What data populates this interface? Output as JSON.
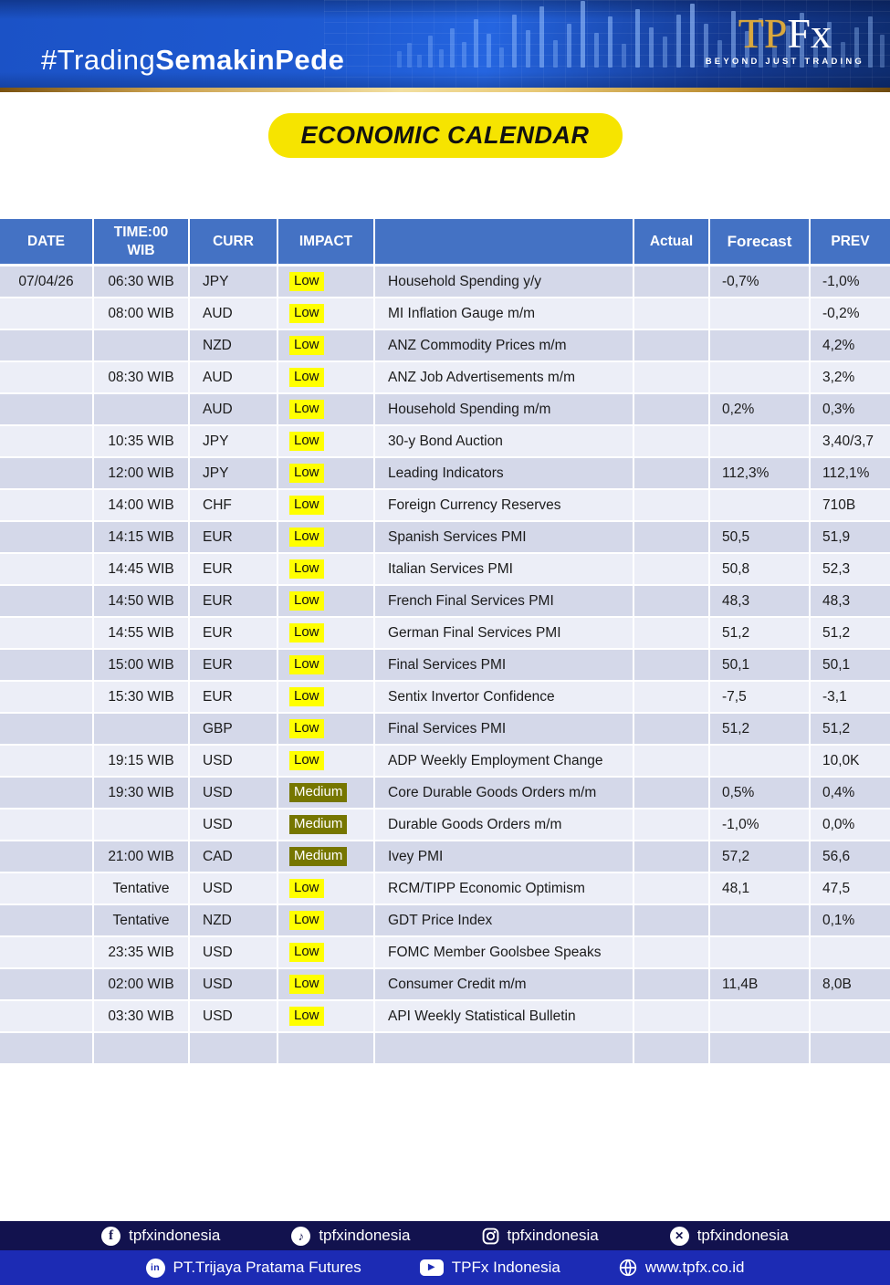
{
  "banner": {
    "hashtag_normal": "#Trading",
    "hashtag_bold": "SemakinPede",
    "logo_tp": "TP",
    "logo_fx": "Fx",
    "logo_tagline": "BEYOND JUST TRADING"
  },
  "title": "ECONOMIC CALENDAR",
  "colors": {
    "table_header_blue": "#4472c4",
    "row_dark": "#d4d8e9",
    "row_light": "#eceef7",
    "impact_low_bg": "#ffff00",
    "impact_medium_bg": "#767600",
    "title_badge_yellow": "#f6e400",
    "banner_blue": "#1e5ad2",
    "gold_accent": "#d9a83f",
    "footer_navy": "#12124e",
    "footer_blue": "#1c2bb4"
  },
  "table": {
    "headers": [
      "DATE",
      "TIME:00 WIB",
      "CURR",
      "IMPACT",
      "",
      "Actual",
      "Forecast",
      "PREV"
    ],
    "rows": [
      {
        "date": "07/04/26",
        "time": "06:30 WIB",
        "curr": "JPY",
        "impact": "Low",
        "event": "Household Spending y/y",
        "actual": "",
        "forecast": "-0,7%",
        "prev": "-1,0%"
      },
      {
        "date": "",
        "time": "08:00 WIB",
        "curr": "AUD",
        "impact": "Low",
        "event": "MI Inflation Gauge m/m",
        "actual": "",
        "forecast": "",
        "prev": "-0,2%"
      },
      {
        "date": "",
        "time": "",
        "curr": "NZD",
        "impact": "Low",
        "event": "ANZ Commodity Prices m/m",
        "actual": "",
        "forecast": "",
        "prev": "4,2%"
      },
      {
        "date": "",
        "time": "08:30 WIB",
        "curr": "AUD",
        "impact": "Low",
        "event": "ANZ Job Advertisements m/m",
        "actual": "",
        "forecast": "",
        "prev": "3,2%"
      },
      {
        "date": "",
        "time": "",
        "curr": "AUD",
        "impact": "Low",
        "event": "Household Spending m/m",
        "actual": "",
        "forecast": "0,2%",
        "prev": "0,3%"
      },
      {
        "date": "",
        "time": "10:35 WIB",
        "curr": "JPY",
        "impact": "Low",
        "event": "30-y Bond Auction",
        "actual": "",
        "forecast": "",
        "prev": "3,40/3,7"
      },
      {
        "date": "",
        "time": "12:00 WIB",
        "curr": "JPY",
        "impact": "Low",
        "event": "Leading Indicators",
        "actual": "",
        "forecast": "112,3%",
        "prev": "112,1%"
      },
      {
        "date": "",
        "time": "14:00 WIB",
        "curr": "CHF",
        "impact": "Low",
        "event": "Foreign Currency Reserves",
        "actual": "",
        "forecast": "",
        "prev": "710B"
      },
      {
        "date": "",
        "time": "14:15 WIB",
        "curr": "EUR",
        "impact": "Low",
        "event": "Spanish Services PMI",
        "actual": "",
        "forecast": "50,5",
        "prev": "51,9"
      },
      {
        "date": "",
        "time": "14:45 WIB",
        "curr": "EUR",
        "impact": "Low",
        "event": "Italian Services PMI",
        "actual": "",
        "forecast": "50,8",
        "prev": "52,3"
      },
      {
        "date": "",
        "time": "14:50 WIB",
        "curr": "EUR",
        "impact": "Low",
        "event": "French Final Services PMI",
        "actual": "",
        "forecast": "48,3",
        "prev": "48,3"
      },
      {
        "date": "",
        "time": "14:55 WIB",
        "curr": "EUR",
        "impact": "Low",
        "event": "German Final Services PMI",
        "actual": "",
        "forecast": "51,2",
        "prev": "51,2"
      },
      {
        "date": "",
        "time": "15:00 WIB",
        "curr": "EUR",
        "impact": "Low",
        "event": "Final Services PMI",
        "actual": "",
        "forecast": "50,1",
        "prev": "50,1"
      },
      {
        "date": "",
        "time": "15:30 WIB",
        "curr": "EUR",
        "impact": "Low",
        "event": "Sentix Invertor Confidence",
        "actual": "",
        "forecast": "-7,5",
        "prev": "-3,1"
      },
      {
        "date": "",
        "time": "",
        "curr": "GBP",
        "impact": "Low",
        "event": "Final Services PMI",
        "actual": "",
        "forecast": "51,2",
        "prev": "51,2"
      },
      {
        "date": "",
        "time": "19:15 WIB",
        "curr": "USD",
        "impact": "Low",
        "event": "ADP Weekly Employment Change",
        "actual": "",
        "forecast": "",
        "prev": "10,0K"
      },
      {
        "date": "",
        "time": "19:30 WIB",
        "curr": "USD",
        "impact": "Medium",
        "event": "Core Durable Goods Orders m/m",
        "actual": "",
        "forecast": "0,5%",
        "prev": "0,4%"
      },
      {
        "date": "",
        "time": "",
        "curr": "USD",
        "impact": "Medium",
        "event": "Durable Goods Orders m/m",
        "actual": "",
        "forecast": "-1,0%",
        "prev": "0,0%"
      },
      {
        "date": "",
        "time": "21:00 WIB",
        "curr": "CAD",
        "impact": "Medium",
        "event": "Ivey PMI",
        "actual": "",
        "forecast": "57,2",
        "prev": "56,6"
      },
      {
        "date": "",
        "time": "Tentative",
        "curr": "USD",
        "impact": "Low",
        "event": "RCM/TIPP Economic Optimism",
        "actual": "",
        "forecast": "48,1",
        "prev": "47,5"
      },
      {
        "date": "",
        "time": "Tentative",
        "curr": "NZD",
        "impact": "Low",
        "event": "GDT Price Index",
        "actual": "",
        "forecast": "",
        "prev": "0,1%"
      },
      {
        "date": "",
        "time": "23:35 WIB",
        "curr": "USD",
        "impact": "Low",
        "event": "FOMC Member Goolsbee Speaks",
        "actual": "",
        "forecast": "",
        "prev": ""
      },
      {
        "date": "",
        "time": "02:00 WIB",
        "curr": "USD",
        "impact": "Low",
        "event": "Consumer Credit m/m",
        "actual": "",
        "forecast": "11,4B",
        "prev": "8,0B"
      },
      {
        "date": "",
        "time": "03:30 WIB",
        "curr": "USD",
        "impact": "Low",
        "event": "API Weekly Statistical Bulletin",
        "actual": "",
        "forecast": "",
        "prev": ""
      },
      {
        "date": "",
        "time": "",
        "curr": "",
        "impact": "",
        "event": "",
        "actual": "",
        "forecast": "",
        "prev": ""
      }
    ]
  },
  "footer": {
    "social": [
      {
        "icon": "facebook-icon",
        "label": "tpfxindonesia"
      },
      {
        "icon": "tiktok-icon",
        "label": "tpfxindonesia"
      },
      {
        "icon": "instagram-icon",
        "label": "tpfxindonesia"
      },
      {
        "icon": "x-icon",
        "label": "tpfxindonesia"
      }
    ],
    "links": [
      {
        "icon": "linkedin-icon",
        "label": "PT.Trijaya Pratama Futures"
      },
      {
        "icon": "youtube-icon",
        "label": "TPFx Indonesia"
      },
      {
        "icon": "globe-icon",
        "label": "www.tpfx.co.id"
      }
    ]
  }
}
